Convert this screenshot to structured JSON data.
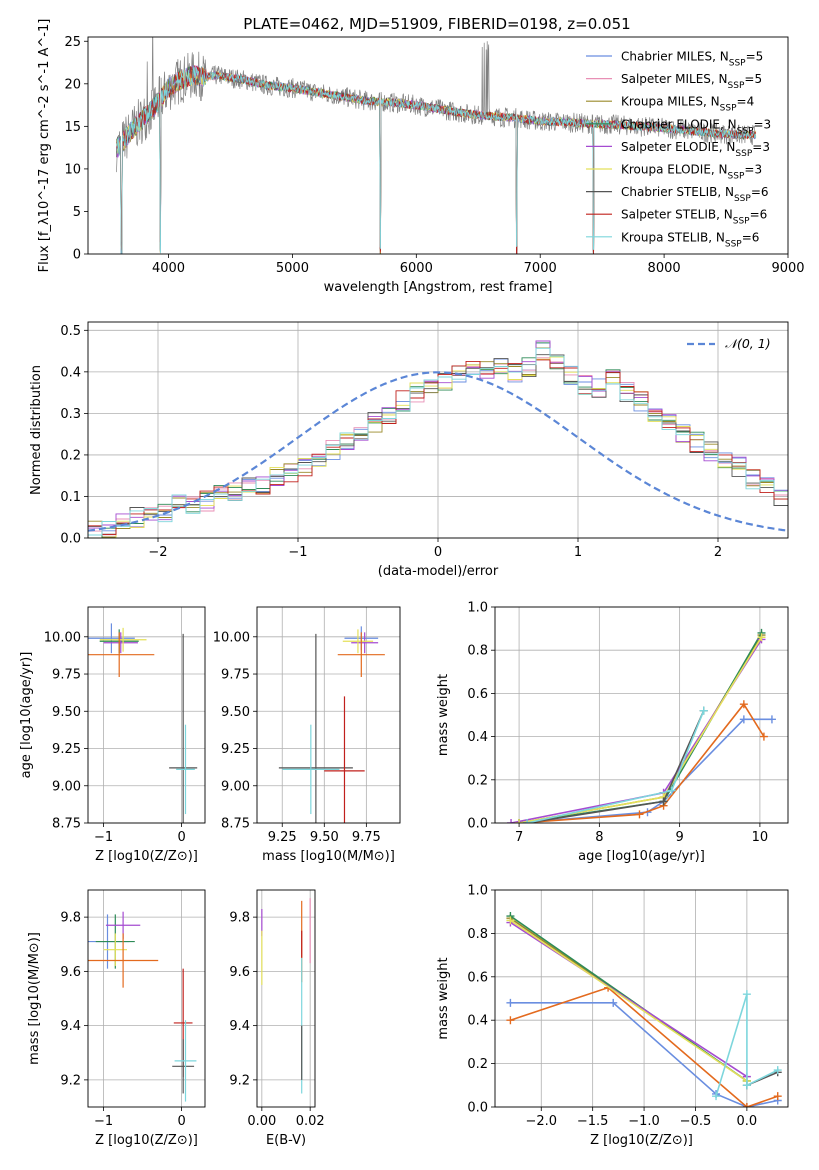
{
  "figure": {
    "title": "PLATE=0462, MJD=51909, FIBERID=0198, z=0.051"
  },
  "legend_series": [
    {
      "name": "Chabrier MILES",
      "nssp": "5",
      "color": "#6a8ee0"
    },
    {
      "name": "Salpeter MILES",
      "nssp": "5",
      "color": "#e88fb5"
    },
    {
      "name": "Kroupa MILES",
      "nssp": "4",
      "color": "#9a8a2a"
    },
    {
      "name": "Chabrier ELODIE",
      "nssp": "3",
      "color": "#2e8b57"
    },
    {
      "name": "Salpeter ELODIE",
      "nssp": "3",
      "color": "#a54bd1"
    },
    {
      "name": "Kroupa ELODIE",
      "nssp": "3",
      "color": "#e4e05a"
    },
    {
      "name": "Chabrier STELIB",
      "nssp": "6",
      "color": "#555555"
    },
    {
      "name": "Salpeter STELIB",
      "nssp": "6",
      "color": "#c0201c"
    },
    {
      "name": "Kroupa STELIB",
      "nssp": "6",
      "color": "#7dd6dc"
    }
  ],
  "chart_data": [
    {
      "id": "spectrum",
      "type": "line",
      "xlabel": "wavelength [Angstrom, rest frame]",
      "ylabel": "Flux [f_λ10^-17 erg cm^-2 s^-1 A^-1]",
      "xlim": [
        3350,
        9000
      ],
      "ylim": [
        0,
        25.5
      ],
      "xticks": [
        4000,
        5000,
        6000,
        7000,
        8000,
        9000
      ],
      "yticks": [
        0,
        5,
        10,
        15,
        20,
        25
      ],
      "grid": false,
      "legend_position": "top-right",
      "observed_color": "#808080",
      "model_color": "#7dd6dc",
      "continuum": {
        "x": [
          3600,
          3700,
          3800,
          3900,
          4000,
          4100,
          4200,
          4300,
          4400,
          4500,
          4600,
          4800,
          5000,
          5200,
          5400,
          5600,
          5800,
          6000,
          6200,
          6400,
          6600,
          6800,
          7000,
          7200,
          7400,
          7600,
          7800,
          8000,
          8200,
          8400,
          8600,
          8740
        ],
        "y": [
          12.5,
          14.5,
          16.0,
          17.5,
          19.5,
          20.5,
          21.0,
          20.8,
          21.0,
          20.7,
          20.5,
          19.8,
          19.5,
          19.0,
          18.5,
          18.0,
          17.8,
          17.5,
          17.0,
          16.5,
          16.2,
          16.0,
          15.6,
          15.5,
          15.3,
          15.2,
          15.0,
          14.8,
          14.5,
          14.2,
          14.0,
          14.0
        ]
      },
      "absorption_features": [
        {
          "x": 3620,
          "depth": 12.5
        },
        {
          "x": 3935,
          "depth": 17.0
        },
        {
          "x": 5710,
          "depth": 17.5
        },
        {
          "x": 6810,
          "depth": 15.5
        },
        {
          "x": 7430,
          "depth": 15.0
        }
      ]
    },
    {
      "id": "residual-histogram",
      "type": "bar",
      "xlabel": "(data-model)/error",
      "ylabel": "Normed distribution",
      "xlim": [
        -2.5,
        2.5
      ],
      "ylim": [
        0,
        0.52
      ],
      "xticks": [
        -2,
        -1,
        0,
        1,
        2
      ],
      "yticks": [
        0.0,
        0.1,
        0.2,
        0.3,
        0.4,
        0.5
      ],
      "grid": true,
      "legend": [
        {
          "label": "𝒩(0, 1)",
          "color": "#5b86d6"
        }
      ],
      "legend_position": "top-right",
      "bin_width": 0.1,
      "bin_start": -2.5,
      "base_values": [
        0.02,
        0.02,
        0.04,
        0.05,
        0.05,
        0.06,
        0.08,
        0.08,
        0.09,
        0.11,
        0.11,
        0.13,
        0.13,
        0.15,
        0.16,
        0.17,
        0.18,
        0.21,
        0.23,
        0.25,
        0.28,
        0.3,
        0.33,
        0.35,
        0.36,
        0.38,
        0.4,
        0.41,
        0.4,
        0.42,
        0.4,
        0.41,
        0.45,
        0.42,
        0.39,
        0.37,
        0.36,
        0.38,
        0.35,
        0.33,
        0.3,
        0.28,
        0.25,
        0.23,
        0.21,
        0.19,
        0.17,
        0.14,
        0.12,
        0.1,
        0.08,
        0.06,
        0.05,
        0.04,
        0.04,
        0.03,
        0.02,
        0.02,
        0.02,
        0.01,
        0.01,
        0.01,
        0.01,
        0.01,
        0.01,
        0.01,
        0.01,
        0.01,
        0.01,
        0.01
      ],
      "normal_curve": {
        "mean": 0,
        "sigma": 1
      }
    },
    {
      "id": "age-vs-metallicity",
      "type": "scatter",
      "xlabel": "Z [log10(Z/Z⊙)]",
      "ylabel": "age  [log10(age/yr)]",
      "xlim": [
        -1.2,
        0.3
      ],
      "ylim": [
        8.75,
        10.2
      ],
      "xticks": [
        -1,
        0
      ],
      "yticks": [
        8.75,
        9.0,
        9.25,
        9.5,
        9.75,
        10.0
      ],
      "grid": true,
      "points": [
        {
          "x": -0.9,
          "y": 9.99,
          "xerr": 0.3,
          "yerr": 0.1,
          "color": "#6a8ee0"
        },
        {
          "x": -0.8,
          "y": 9.97,
          "xerr": 0.25,
          "yerr": 0.08,
          "color": "#2e8b57"
        },
        {
          "x": -0.78,
          "y": 9.96,
          "xerr": 0.22,
          "yerr": 0.07,
          "color": "#a54bd1"
        },
        {
          "x": -0.75,
          "y": 9.98,
          "xerr": 0.3,
          "yerr": 0.08,
          "color": "#e4e05a"
        },
        {
          "x": -0.8,
          "y": 9.88,
          "xerr": 0.45,
          "yerr": 0.15,
          "color": "#e36a1e"
        },
        {
          "x": 0.02,
          "y": 9.12,
          "xerr": 0.18,
          "yerr": 0.9,
          "color": "#555555"
        },
        {
          "x": 0.05,
          "y": 9.11,
          "xerr": 0.12,
          "yerr": 0.3,
          "color": "#7dd6dc"
        }
      ]
    },
    {
      "id": "age-vs-mass",
      "type": "scatter",
      "xlabel": "mass [log10(M/M⊙)]",
      "ylabel": "",
      "xlim": [
        9.1,
        9.95
      ],
      "ylim": [
        8.75,
        10.2
      ],
      "xticks": [
        9.25,
        9.5,
        9.75
      ],
      "yticks": [
        8.75,
        9.0,
        9.25,
        9.5,
        9.75,
        10.0
      ],
      "grid": true,
      "points": [
        {
          "x": 9.72,
          "y": 9.99,
          "xerr": 0.1,
          "yerr": 0.08,
          "color": "#6a8ee0"
        },
        {
          "x": 9.74,
          "y": 9.96,
          "xerr": 0.08,
          "yerr": 0.07,
          "color": "#a54bd1"
        },
        {
          "x": 9.7,
          "y": 9.97,
          "xerr": 0.09,
          "yerr": 0.08,
          "color": "#e4e05a"
        },
        {
          "x": 9.72,
          "y": 9.88,
          "xerr": 0.14,
          "yerr": 0.15,
          "color": "#e36a1e"
        },
        {
          "x": 9.45,
          "y": 9.12,
          "xerr": 0.22,
          "yerr": 0.9,
          "color": "#555555"
        },
        {
          "x": 9.42,
          "y": 9.11,
          "xerr": 0.17,
          "yerr": 0.3,
          "color": "#7dd6dc"
        },
        {
          "x": 9.62,
          "y": 9.1,
          "xerr": 0.12,
          "yerr": 0.5,
          "color": "#c0201c"
        }
      ]
    },
    {
      "id": "mass-weight-vs-age",
      "type": "line",
      "xlabel": "age  [log10(age/yr)]",
      "ylabel": "mass weight",
      "xlim": [
        6.7,
        10.35
      ],
      "ylim": [
        0,
        1.0
      ],
      "xticks": [
        7,
        8,
        9,
        10
      ],
      "yticks": [
        0.0,
        0.2,
        0.4,
        0.6,
        0.8,
        1.0
      ],
      "grid": true,
      "series": [
        {
          "color": "#6a8ee0",
          "x": [
            7.0,
            8.6,
            8.8,
            9.8,
            10.15
          ],
          "y": [
            0.0,
            0.05,
            0.1,
            0.48,
            0.48
          ]
        },
        {
          "color": "#e36a1e",
          "x": [
            7.0,
            8.5,
            8.8,
            9.8,
            10.05
          ],
          "y": [
            0.0,
            0.04,
            0.08,
            0.55,
            0.4
          ]
        },
        {
          "color": "#9a8a2a",
          "x": [
            7.0,
            8.8,
            10.02
          ],
          "y": [
            0.0,
            0.12,
            0.87
          ]
        },
        {
          "color": "#2e8b57",
          "x": [
            7.0,
            8.8,
            10.02
          ],
          "y": [
            0.0,
            0.1,
            0.88
          ]
        },
        {
          "color": "#a54bd1",
          "x": [
            6.9,
            8.8,
            10.02
          ],
          "y": [
            0.0,
            0.14,
            0.85
          ]
        },
        {
          "color": "#e4e05a",
          "x": [
            7.0,
            8.8,
            10.02
          ],
          "y": [
            0.0,
            0.12,
            0.86
          ]
        },
        {
          "color": "#555555",
          "x": [
            7.1,
            8.8,
            9.3
          ],
          "y": [
            0.0,
            0.1,
            0.52
          ]
        },
        {
          "color": "#7dd6dc",
          "x": [
            7.1,
            8.9,
            9.3
          ],
          "y": [
            0.0,
            0.15,
            0.52
          ]
        }
      ]
    },
    {
      "id": "mass-vs-metallicity",
      "type": "scatter",
      "xlabel": "Z [log10(Z/Z⊙)]",
      "ylabel": "mass [log10(M/M⊙)]",
      "xlim": [
        -1.2,
        0.3
      ],
      "ylim": [
        9.1,
        9.9
      ],
      "xticks": [
        -1,
        0
      ],
      "yticks": [
        9.2,
        9.4,
        9.6,
        9.8
      ],
      "grid": true,
      "points": [
        {
          "x": -0.95,
          "y": 9.71,
          "xerr": 0.28,
          "yerr": 0.1,
          "color": "#6a8ee0"
        },
        {
          "x": -0.85,
          "y": 9.71,
          "xerr": 0.25,
          "yerr": 0.1,
          "color": "#2e8b57"
        },
        {
          "x": -0.75,
          "y": 9.77,
          "xerr": 0.22,
          "yerr": 0.05,
          "color": "#a54bd1"
        },
        {
          "x": -0.85,
          "y": 9.68,
          "xerr": 0.15,
          "yerr": 0.06,
          "color": "#e4e05a"
        },
        {
          "x": -0.75,
          "y": 9.64,
          "xerr": 0.45,
          "yerr": 0.1,
          "color": "#e36a1e"
        },
        {
          "x": 0.02,
          "y": 9.41,
          "xerr": 0.12,
          "yerr": 0.2,
          "color": "#c0201c"
        },
        {
          "x": 0.02,
          "y": 9.25,
          "xerr": 0.14,
          "yerr": 0.1,
          "color": "#555555"
        },
        {
          "x": 0.05,
          "y": 9.27,
          "xerr": 0.14,
          "yerr": 0.15,
          "color": "#7dd6dc"
        }
      ]
    },
    {
      "id": "mass-vs-ebv",
      "type": "scatter",
      "xlabel": "E(B-V)",
      "ylabel": "",
      "xlim": [
        -0.002,
        0.022
      ],
      "ylim": [
        9.1,
        9.9
      ],
      "xticks": [
        0.0,
        0.02
      ],
      "xticklabels": [
        "0.00",
        "0.02"
      ],
      "yticks": [
        9.2,
        9.4,
        9.6,
        9.8
      ],
      "grid": true,
      "points": [
        {
          "x": 0.0,
          "y": 9.78,
          "xerr": 0.0,
          "yerr": 0.05,
          "color": "#a54bd1"
        },
        {
          "x": 0.0,
          "y": 9.65,
          "xerr": 0.0,
          "yerr": 0.1,
          "color": "#e4e05a"
        },
        {
          "x": 0.0165,
          "y": 9.71,
          "xerr": 0.0,
          "yerr": 0.15,
          "color": "#e36a1e"
        },
        {
          "x": 0.0165,
          "y": 9.7,
          "xerr": 0.0,
          "yerr": 0.05,
          "color": "#c0201c"
        },
        {
          "x": 0.0165,
          "y": 9.4,
          "xerr": 0.0,
          "yerr": 0.25,
          "color": "#7dd6dc"
        },
        {
          "x": 0.0165,
          "y": 9.3,
          "xerr": 0.0,
          "yerr": 0.1,
          "color": "#555555"
        },
        {
          "x": 0.02,
          "y": 9.75,
          "xerr": 0.0,
          "yerr": 0.12,
          "color": "#e88fb5"
        }
      ]
    },
    {
      "id": "mass-weight-vs-metallicity",
      "type": "line",
      "xlabel": "Z [log10(Z/Z⊙)]",
      "ylabel": "mass weight",
      "xlim": [
        -2.45,
        0.4
      ],
      "ylim": [
        0,
        1.0
      ],
      "xticks": [
        -2.0,
        -1.5,
        -1.0,
        -0.5,
        0.0
      ],
      "xticklabels": [
        "−2.0",
        "−1.5",
        "−1.0",
        "−0.5",
        "0.0"
      ],
      "yticks": [
        0.0,
        0.2,
        0.4,
        0.6,
        0.8,
        1.0
      ],
      "grid": true,
      "series": [
        {
          "color": "#6a8ee0",
          "x": [
            -2.3,
            -1.3,
            -0.3,
            0.0,
            0.3
          ],
          "y": [
            0.48,
            0.48,
            0.06,
            0.0,
            0.03
          ]
        },
        {
          "color": "#e36a1e",
          "x": [
            -2.3,
            -1.35,
            0.0,
            0.3
          ],
          "y": [
            0.4,
            0.55,
            0.0,
            0.05
          ]
        },
        {
          "color": "#9a8a2a",
          "x": [
            -2.3,
            0.0
          ],
          "y": [
            0.87,
            0.12
          ]
        },
        {
          "color": "#2e8b57",
          "x": [
            -2.3,
            0.0
          ],
          "y": [
            0.88,
            0.12
          ]
        },
        {
          "color": "#a54bd1",
          "x": [
            -2.3,
            0.0
          ],
          "y": [
            0.85,
            0.14
          ]
        },
        {
          "color": "#e4e05a",
          "x": [
            -2.3,
            0.0
          ],
          "y": [
            0.86,
            0.12
          ]
        },
        {
          "color": "#555555",
          "x": [
            0.0,
            0.3
          ],
          "y": [
            0.1,
            0.16
          ]
        },
        {
          "color": "#7dd6dc",
          "x": [
            -0.3,
            0.0,
            0.0,
            0.3
          ],
          "y": [
            0.05,
            0.52,
            0.1,
            0.17
          ]
        }
      ]
    }
  ]
}
